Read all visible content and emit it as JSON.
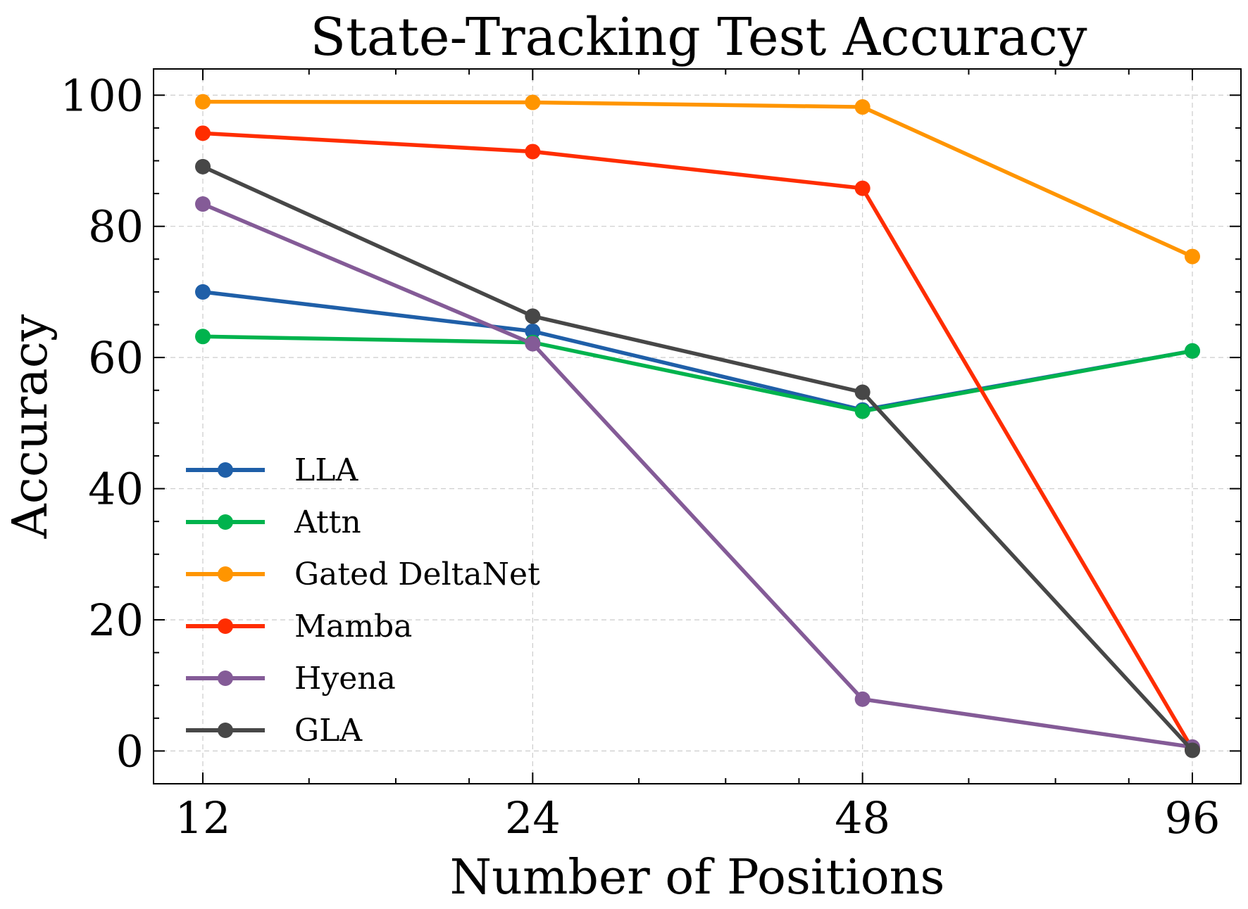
{
  "chart_data": {
    "type": "line",
    "title": "State-Tracking Test Accuracy",
    "xlabel": "Number of Positions",
    "ylabel": "Accuracy",
    "x_scale": "log2",
    "categories": [
      "12",
      "24",
      "48",
      "96"
    ],
    "x": [
      12,
      24,
      48,
      96
    ],
    "ylim": [
      -5,
      104
    ],
    "yticks": [
      0,
      20,
      40,
      60,
      80,
      100
    ],
    "grid": true,
    "legend_position": "center-left",
    "series": [
      {
        "name": "LLA",
        "color": "#1f5fa8",
        "values": [
          70.0,
          64.0,
          52.0,
          61.0
        ]
      },
      {
        "name": "Attn",
        "color": "#00b34d",
        "values": [
          63.2,
          62.3,
          51.8,
          61.0
        ]
      },
      {
        "name": "Gated DeltaNet",
        "color": "#ff9500",
        "values": [
          99.0,
          98.9,
          98.2,
          75.4
        ]
      },
      {
        "name": "Mamba",
        "color": "#ff2d00",
        "values": [
          94.2,
          91.4,
          85.8,
          0.3
        ]
      },
      {
        "name": "Hyena",
        "color": "#845b97",
        "values": [
          83.4,
          62.1,
          7.9,
          0.6
        ]
      },
      {
        "name": "GLA",
        "color": "#474747",
        "values": [
          89.1,
          66.3,
          54.7,
          0.1
        ]
      }
    ]
  }
}
